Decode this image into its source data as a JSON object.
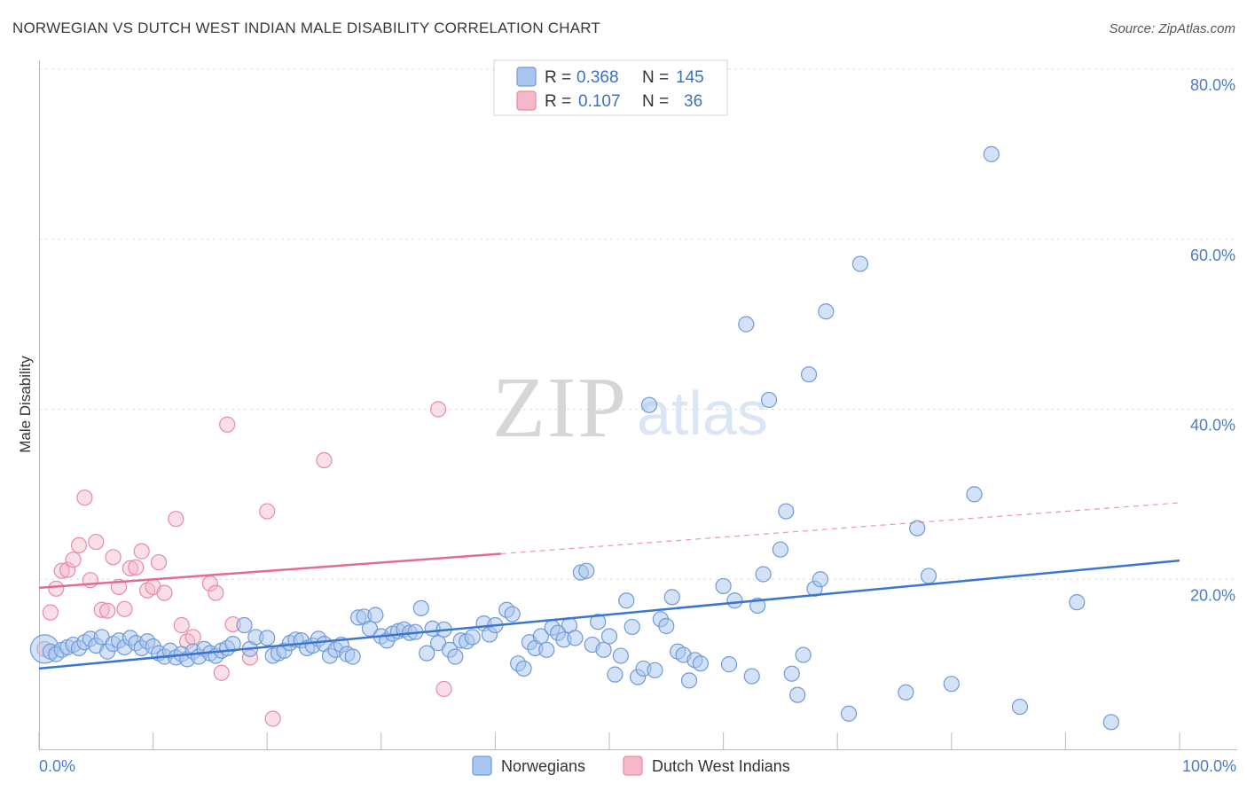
{
  "header": {
    "title": "NORWEGIAN VS DUTCH WEST INDIAN MALE DISABILITY CORRELATION CHART",
    "source": "Source: ZipAtlas.com"
  },
  "watermark": {
    "zip": "ZIP",
    "atlas": "atlas"
  },
  "colors": {
    "blue_fill": "#a9c6f0",
    "blue_stroke": "#6f9ad8",
    "blue_line": "#3a75d0",
    "pink_fill": "#f5b8c9",
    "pink_stroke": "#e88aa6",
    "pink_line": "#e06b93",
    "tick_label": "#4a7cc9",
    "grid": "#dddddd"
  },
  "legend": {
    "rows": [
      {
        "r_label": "R =",
        "r_value": "0.368",
        "n_label": "N =",
        "n_value": "145"
      },
      {
        "r_label": "R =",
        "r_value": "0.107",
        "n_label": "N =",
        "n_value": "36"
      }
    ]
  },
  "chart_data": {
    "type": "scatter",
    "title": "NORWEGIAN VS DUTCH WEST INDIAN MALE DISABILITY CORRELATION CHART",
    "xlabel": "",
    "ylabel": "Male Disability",
    "xlim": [
      0,
      100
    ],
    "ylim": [
      0,
      80
    ],
    "grid": true,
    "legend_position": "bottom",
    "x_tick_labels": [
      "0.0%",
      "100.0%"
    ],
    "y_ticks": [
      20,
      40,
      60,
      80
    ],
    "y_tick_labels": [
      "20.0%",
      "40.0%",
      "60.0%",
      "80.0%"
    ],
    "series": [
      {
        "name": "Norwegians",
        "r": 0.368,
        "n": 145,
        "trend": {
          "x": [
            0,
            100
          ],
          "y": [
            9.5,
            22.2
          ]
        },
        "points": [
          [
            0.5,
            11.8
          ],
          [
            1,
            11.5
          ],
          [
            1.5,
            11.2
          ],
          [
            2,
            11.7
          ],
          [
            2.5,
            12
          ],
          [
            3,
            12.3
          ],
          [
            3.5,
            11.9
          ],
          [
            4,
            12.6
          ],
          [
            4.5,
            13
          ],
          [
            5,
            12.2
          ],
          [
            5.5,
            13.2
          ],
          [
            6,
            11.5
          ],
          [
            6.5,
            12.4
          ],
          [
            7,
            12.8
          ],
          [
            7.5,
            12
          ],
          [
            8,
            13.1
          ],
          [
            8.5,
            12.5
          ],
          [
            9,
            11.9
          ],
          [
            9.5,
            12.7
          ],
          [
            10,
            12.1
          ],
          [
            10.5,
            11.3
          ],
          [
            11,
            10.9
          ],
          [
            11.5,
            11.6
          ],
          [
            12,
            10.8
          ],
          [
            12.5,
            11.2
          ],
          [
            13,
            10.6
          ],
          [
            13.5,
            11.5
          ],
          [
            14,
            10.9
          ],
          [
            14.5,
            11.8
          ],
          [
            15,
            11.3
          ],
          [
            15.5,
            11
          ],
          [
            16,
            11.6
          ],
          [
            16.5,
            11.9
          ],
          [
            17,
            12.4
          ],
          [
            18,
            14.6
          ],
          [
            18.5,
            11.8
          ],
          [
            19,
            13.2
          ],
          [
            20,
            13.1
          ],
          [
            20.5,
            11
          ],
          [
            21,
            11.3
          ],
          [
            21.5,
            11.6
          ],
          [
            22,
            12.5
          ],
          [
            22.5,
            12.9
          ],
          [
            23,
            12.8
          ],
          [
            23.5,
            11.9
          ],
          [
            24,
            12.2
          ],
          [
            24.5,
            13
          ],
          [
            25,
            12.4
          ],
          [
            25.5,
            11
          ],
          [
            26,
            11.7
          ],
          [
            26.5,
            12.3
          ],
          [
            27,
            11.2
          ],
          [
            27.5,
            10.9
          ],
          [
            28,
            15.5
          ],
          [
            28.5,
            15.6
          ],
          [
            29,
            14.2
          ],
          [
            29.5,
            15.8
          ],
          [
            30,
            13.3
          ],
          [
            30.5,
            12.8
          ],
          [
            31,
            13.6
          ],
          [
            31.5,
            13.9
          ],
          [
            32,
            14.1
          ],
          [
            32.5,
            13.7
          ],
          [
            33,
            13.8
          ],
          [
            33.5,
            16.6
          ],
          [
            34,
            11.3
          ],
          [
            34.5,
            14.2
          ],
          [
            35,
            12.5
          ],
          [
            35.5,
            14.1
          ],
          [
            36,
            11.7
          ],
          [
            36.5,
            10.9
          ],
          [
            37,
            12.8
          ],
          [
            37.5,
            12.7
          ],
          [
            38,
            13.2
          ],
          [
            39,
            14.8
          ],
          [
            39.5,
            13.5
          ],
          [
            40,
            14.6
          ],
          [
            41,
            16.4
          ],
          [
            41.5,
            15.9
          ],
          [
            42,
            10.1
          ],
          [
            42.5,
            9.5
          ],
          [
            43,
            12.6
          ],
          [
            43.5,
            11.9
          ],
          [
            44,
            13.3
          ],
          [
            44.5,
            11.7
          ],
          [
            45,
            14.3
          ],
          [
            45.5,
            13.7
          ],
          [
            46,
            12.9
          ],
          [
            46.5,
            14.6
          ],
          [
            47,
            13.1
          ],
          [
            47.5,
            20.8
          ],
          [
            48,
            21
          ],
          [
            48.5,
            12.3
          ],
          [
            49,
            15
          ],
          [
            49.5,
            11.7
          ],
          [
            50,
            13.3
          ],
          [
            50.5,
            8.8
          ],
          [
            51,
            11
          ],
          [
            51.5,
            17.5
          ],
          [
            52,
            14.4
          ],
          [
            52.5,
            8.5
          ],
          [
            53,
            9.5
          ],
          [
            53.5,
            40.5
          ],
          [
            54,
            9.3
          ],
          [
            54.5,
            15.3
          ],
          [
            55,
            14.5
          ],
          [
            55.5,
            17.9
          ],
          [
            56,
            11.5
          ],
          [
            56.5,
            11.1
          ],
          [
            57,
            8.1
          ],
          [
            57.5,
            10.5
          ],
          [
            58,
            10.1
          ],
          [
            60,
            19.2
          ],
          [
            60.5,
            10
          ],
          [
            61,
            17.5
          ],
          [
            62,
            50
          ],
          [
            62.5,
            8.6
          ],
          [
            63,
            16.9
          ],
          [
            63.5,
            20.6
          ],
          [
            64,
            41.1
          ],
          [
            65,
            23.5
          ],
          [
            65.5,
            28
          ],
          [
            66,
            8.9
          ],
          [
            66.5,
            6.4
          ],
          [
            67,
            11.1
          ],
          [
            67.5,
            44.1
          ],
          [
            68,
            18.9
          ],
          [
            68.5,
            20
          ],
          [
            69,
            51.5
          ],
          [
            71,
            4.2
          ],
          [
            72,
            57.1
          ],
          [
            76,
            6.7
          ],
          [
            77,
            26
          ],
          [
            78,
            20.4
          ],
          [
            80,
            7.7
          ],
          [
            82,
            30
          ],
          [
            83.5,
            70
          ],
          [
            86,
            5
          ],
          [
            91,
            17.3
          ],
          [
            94,
            3.2
          ]
        ]
      },
      {
        "name": "Dutch West Indians",
        "r": 0.107,
        "n": 36,
        "trend": {
          "x": [
            0,
            40.5
          ],
          "y": [
            19.0,
            23.0
          ],
          "dashed_to": [
            100,
            29
          ]
        },
        "points": [
          [
            0.5,
            11.8
          ],
          [
            1,
            16.1
          ],
          [
            1.5,
            18.9
          ],
          [
            2,
            21
          ],
          [
            2.5,
            21.1
          ],
          [
            3,
            22.3
          ],
          [
            3.5,
            24
          ],
          [
            4,
            29.6
          ],
          [
            4.5,
            19.9
          ],
          [
            5,
            24.4
          ],
          [
            5.5,
            16.4
          ],
          [
            6,
            16.3
          ],
          [
            6.5,
            22.6
          ],
          [
            7,
            19.1
          ],
          [
            7.5,
            16.5
          ],
          [
            8,
            21.3
          ],
          [
            8.5,
            21.4
          ],
          [
            9,
            23.3
          ],
          [
            9.5,
            18.7
          ],
          [
            10,
            19.1
          ],
          [
            10.5,
            22
          ],
          [
            11,
            18.4
          ],
          [
            12,
            27.1
          ],
          [
            12.5,
            14.6
          ],
          [
            13,
            12.7
          ],
          [
            13.5,
            13.2
          ],
          [
            15,
            19.5
          ],
          [
            15.5,
            18.4
          ],
          [
            16,
            9
          ],
          [
            16.5,
            38.2
          ],
          [
            17,
            14.7
          ],
          [
            18.5,
            10.8
          ],
          [
            20,
            28
          ],
          [
            20.5,
            3.6
          ],
          [
            25,
            34
          ],
          [
            35,
            40
          ],
          [
            35.5,
            7.1
          ]
        ]
      }
    ]
  },
  "bottom_legend": {
    "items": [
      {
        "label": "Norwegians"
      },
      {
        "label": "Dutch West Indians"
      }
    ]
  }
}
